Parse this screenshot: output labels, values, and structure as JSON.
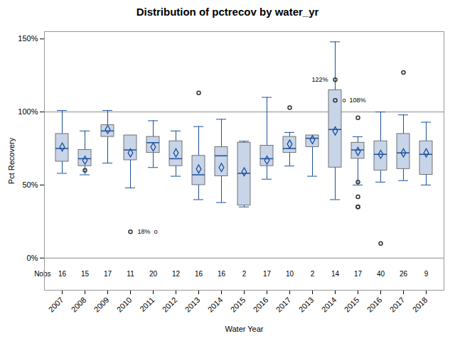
{
  "chart_data": {
    "type": "box",
    "title": "Distribution of pctrecov by water_yr",
    "xlabel": "Water Year",
    "ylabel": "Pct Recovery",
    "categories": [
      "2007",
      "2008",
      "2009",
      "2010",
      "2011",
      "2012",
      "2013",
      "2014",
      "2015",
      "2016",
      "2017",
      "2013",
      "2014",
      "2015",
      "2016",
      "2017",
      "2018"
    ],
    "boxes": [
      {
        "q1": 66,
        "median": 75,
        "q3": 85,
        "mean": 76,
        "whislo": 58,
        "whishi": 101,
        "fliers": []
      },
      {
        "q1": 63,
        "median": 68,
        "q3": 74,
        "mean": 67,
        "whislo": 57,
        "whishi": 87,
        "fliers": [
          60
        ]
      },
      {
        "q1": 83,
        "median": 87,
        "q3": 91,
        "mean": 88,
        "whislo": 65,
        "whishi": 101,
        "fliers": []
      },
      {
        "q1": 67,
        "median": 74,
        "q3": 84,
        "mean": 72,
        "whislo": 48,
        "whishi": 84,
        "fliers": [
          18
        ]
      },
      {
        "q1": 72,
        "median": 79,
        "q3": 83,
        "mean": 76,
        "whislo": 62,
        "whishi": 94,
        "fliers": []
      },
      {
        "q1": 63,
        "median": 68,
        "q3": 80,
        "mean": 72,
        "whislo": 56,
        "whishi": 87,
        "fliers": []
      },
      {
        "q1": 50,
        "median": 57,
        "q3": 70,
        "mean": 61,
        "whislo": 40,
        "whishi": 90,
        "fliers": [
          113
        ]
      },
      {
        "q1": 56,
        "median": 70,
        "q3": 76,
        "mean": 62,
        "whislo": 38,
        "whishi": 95,
        "fliers": []
      },
      {
        "q1": 36,
        "median": 58,
        "q3": 79,
        "mean": 59,
        "whislo": 35,
        "whishi": 80,
        "fliers": []
      },
      {
        "q1": 63,
        "median": 68,
        "q3": 77,
        "mean": 67,
        "whislo": 54,
        "whishi": 110,
        "fliers": []
      },
      {
        "q1": 72,
        "median": 75,
        "q3": 83,
        "mean": 78,
        "whislo": 63,
        "whishi": 86,
        "fliers": [
          103
        ]
      },
      {
        "q1": 76,
        "median": 82,
        "q3": 84,
        "mean": 81,
        "whislo": 56,
        "whishi": 84,
        "fliers": []
      },
      {
        "q1": 62,
        "median": 88,
        "q3": 115,
        "mean": 87,
        "whislo": 40,
        "whishi": 148,
        "fliers": [
          122,
          108
        ]
      },
      {
        "q1": 68,
        "median": 74,
        "q3": 79,
        "mean": 73,
        "whislo": 50,
        "whishi": 83,
        "fliers": [
          96,
          52,
          42,
          35,
          35
        ]
      },
      {
        "q1": 60,
        "median": 71,
        "q3": 80,
        "mean": 71,
        "whislo": 52,
        "whishi": 100,
        "fliers": [
          10
        ]
      },
      {
        "q1": 61,
        "median": 72,
        "q3": 85,
        "mean": 72,
        "whislo": 53,
        "whishi": 98,
        "fliers": [
          127
        ]
      },
      {
        "q1": 57,
        "median": 71,
        "q3": 80,
        "mean": 72,
        "whislo": 50,
        "whishi": 93,
        "fliers": []
      }
    ],
    "nobs_label": "Nobs",
    "nobs": [
      16,
      15,
      17,
      11,
      20,
      12,
      16,
      16,
      2,
      17,
      10,
      2,
      14,
      17,
      40,
      26,
      9
    ],
    "annotations": [
      {
        "text": "18%  o",
        "index": 3,
        "y": 18,
        "align": "left"
      },
      {
        "text": "122%",
        "index": 12,
        "y": 122,
        "align": "right"
      },
      {
        "text": "o  108%",
        "index": 12,
        "y": 108,
        "align": "left"
      }
    ],
    "hlines": [
      100,
      0
    ],
    "color": "#c8d4e8",
    "ylim": [
      -22,
      155
    ],
    "yticks": [
      {
        "value": 0,
        "label": "0%"
      },
      {
        "value": 50,
        "label": "50%"
      },
      {
        "value": 100,
        "label": "100%"
      },
      {
        "value": 150,
        "label": "150%"
      }
    ],
    "grid": false
  }
}
